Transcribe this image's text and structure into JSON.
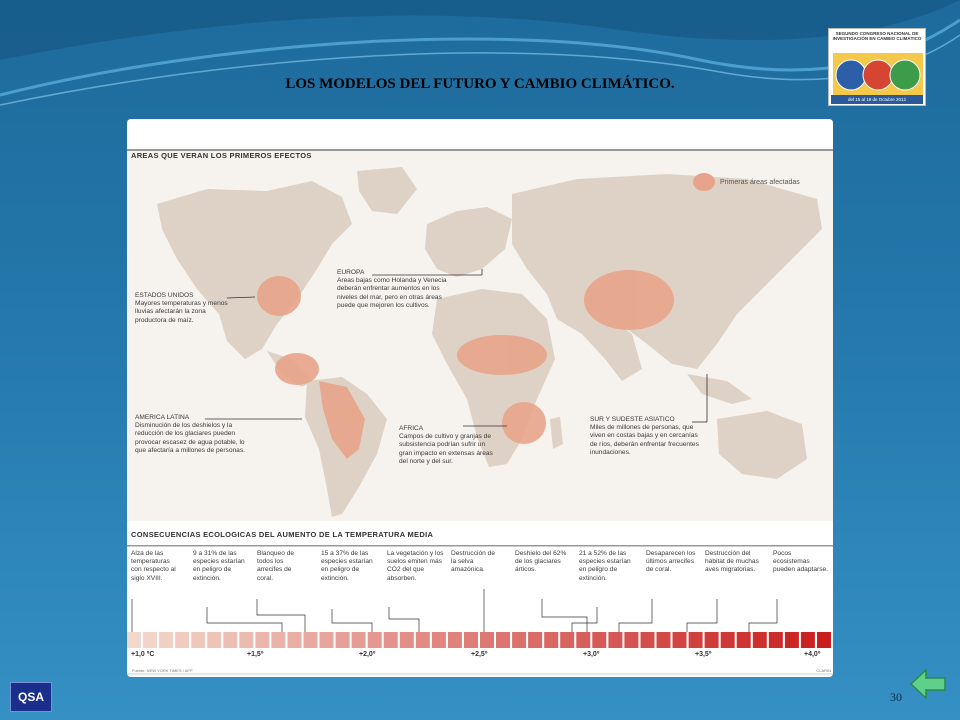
{
  "slide": {
    "title": "LOS MODELOS DEL FUTURO Y CAMBIO CLIMÁTICO.",
    "page_number": "30",
    "qsa_label": "QSA"
  },
  "logo": {
    "text": "SEGUNDO CONGRESO NACIONAL DE INVESTIGACIÓN EN CAMBIO CLIMÁTICO",
    "dates": "del 15 al 19 de Octubre 2012"
  },
  "infographic": {
    "map_section_title": "AREAS QUE VERAN LOS PRIMEROS EFECTOS",
    "legend_label": "Primeras áreas afectadas",
    "regions": [
      {
        "name": "ESTADOS UNIDOS",
        "desc": "Mayores temperaturas y menos lluvias afectarán la zona productora de maíz."
      },
      {
        "name": "EUROPA",
        "desc": "Areas bajas como Holanda y Venecia deberán enfrentar aumentos en los niveles del mar, pero en otras áreas puede que mejoren los cultivos."
      },
      {
        "name": "AMERICA LATINA",
        "desc": "Disminución de los deshielos y la reducción de los glaciares pueden provocar escasez de agua potable, lo que afectaría a millones de personas."
      },
      {
        "name": "AFRICA",
        "desc": "Campos de cultivo y granjas de subsistencia podrían sufrir un gran impacto en extensas áreas del norte y del sur."
      },
      {
        "name": "SUR Y SUDESTE ASIATICO",
        "desc": "Miles de millones de personas, que viven en costas bajas y en cercanías de ríos, deberán enfrentar frecuentes inundaciones."
      }
    ],
    "consequences_title": "CONSECUENCIAS ECOLOGICAS DEL AUMENTO DE LA TEMPERATURA MEDIA",
    "consequences": [
      "Alza de las temperaturas con respecto al siglo XVIII.",
      "9 a 31% de las especies estarían en peligro de extinción.",
      "Blanqueo de todos los arrecifes de coral.",
      "15 a 37% de las especies estarían en peligro de extinción.",
      "La vegetación y los suelos emiten más CO2 del que absorben.",
      "Destrucción de la selva amazónica.",
      "Deshielo del 62% de los glaciares árticos.",
      "21 a 52% de las especies estarían en peligro de extinción.",
      "Desaparecen los últimos arrecifes de coral.",
      "Destrucción del hábitat de muchas aves migratorias.",
      "Pocos ecosistemas pueden adaptarse."
    ],
    "scale_labels": [
      "+1,0 ºC",
      "+1,5º",
      "+2,0º",
      "+2,5º",
      "+3,0º",
      "+3,5º",
      "+4,0º"
    ],
    "source": "Fuente: NEW YORK TIMES / AFP",
    "credit": "CLARIN"
  },
  "colors": {
    "background": "#2478ab",
    "affected_area": "#e8a48a",
    "continent": "#ddd2c5",
    "scale_start": "#f3d9cc",
    "scale_end": "#c81e1e"
  }
}
